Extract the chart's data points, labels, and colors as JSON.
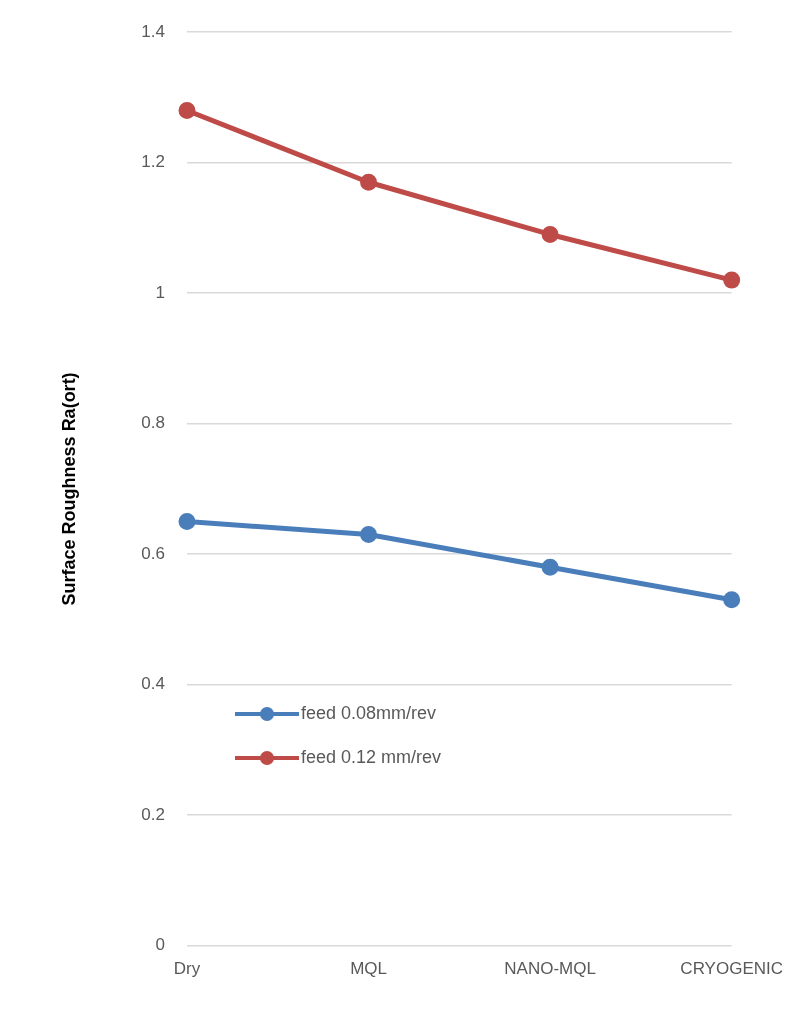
{
  "chart_data": {
    "type": "line",
    "ylabel": "Surface Roughness Ra(ort)",
    "categories": [
      "Dry",
      "MQL",
      "NANO-MQL",
      "CRYOGENIC"
    ],
    "series": [
      {
        "name": "feed 0.08mm/rev",
        "color": "#4a7ebb",
        "values": [
          0.65,
          0.63,
          0.58,
          0.53
        ]
      },
      {
        "name": "feed 0.12 mm/rev",
        "color": "#be4b48",
        "values": [
          1.28,
          1.17,
          1.09,
          1.02
        ]
      }
    ],
    "ylim": [
      0,
      1.4
    ],
    "yticks": [
      0,
      0.2,
      0.4,
      0.6,
      0.8,
      1,
      1.2,
      1.4
    ],
    "grid": "y",
    "legend": "bottom left",
    "marker": "circle",
    "line_style": "solid"
  }
}
